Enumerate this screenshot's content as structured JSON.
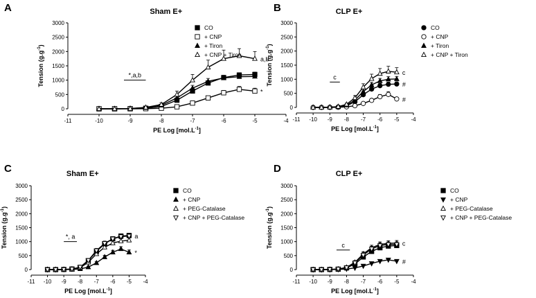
{
  "chart_data": [
    {
      "panel": "A",
      "type": "line",
      "title": "Sham E+",
      "xlabel": "PE Log [mol.L",
      "xlabel_sup": "-1",
      "xlabel_end": "]",
      "ylabel": "Tension (g.g",
      "ylabel_sup": "-1",
      "ylabel_end": ")",
      "xlim": [
        -11,
        -4
      ],
      "ylim": [
        0,
        3000
      ],
      "xticks": [
        "-11",
        "-10",
        "-9",
        "-8",
        "-7",
        "-6",
        "-5",
        "-4"
      ],
      "yticks": [
        "0",
        "500",
        "1000",
        "1500",
        "2000",
        "2500",
        "3000"
      ],
      "x": [
        -10,
        -9.5,
        -9,
        -8.5,
        -8,
        -7.5,
        -7,
        -6.5,
        -6,
        -5.5,
        -5
      ],
      "series": [
        {
          "name": "CO",
          "marker": "square-filled",
          "values": [
            0,
            0,
            5,
            20,
            80,
            300,
            620,
            900,
            1090,
            1180,
            1200
          ],
          "err": [
            0,
            0,
            10,
            20,
            40,
            60,
            80,
            80,
            80,
            80,
            80
          ],
          "end_label": ""
        },
        {
          "name": "+ CNP",
          "marker": "square-open",
          "values": [
            0,
            0,
            0,
            5,
            20,
            70,
            200,
            380,
            560,
            680,
            620
          ],
          "err": [
            0,
            0,
            5,
            10,
            20,
            30,
            60,
            70,
            80,
            100,
            100
          ],
          "end_label": "*"
        },
        {
          "name": "+ Tiron",
          "marker": "triangle-filled",
          "values": [
            0,
            0,
            10,
            40,
            120,
            380,
            720,
            960,
            1080,
            1120,
            1130
          ],
          "err": [
            0,
            0,
            10,
            20,
            40,
            80,
            100,
            100,
            80,
            80,
            80
          ],
          "end_label": ""
        },
        {
          "name": "+ CNP + Tiron",
          "marker": "triangle-open",
          "values": [
            0,
            0,
            10,
            50,
            150,
            500,
            1000,
            1450,
            1750,
            1850,
            1750
          ],
          "err": [
            0,
            0,
            10,
            30,
            60,
            120,
            200,
            250,
            300,
            250,
            250
          ],
          "end_label": "a,b"
        }
      ],
      "annotation": {
        "text": "*,a,b",
        "range": [
          -9.2,
          -8.5
        ],
        "y": 1000
      }
    },
    {
      "panel": "B",
      "type": "line",
      "title": "CLP E+",
      "xlabel": "PE Log [mol.L",
      "xlabel_sup": "-1",
      "xlabel_end": "]",
      "ylabel": "Tension (g.g",
      "ylabel_sup": "-1",
      "ylabel_end": ")",
      "xlim": [
        -11,
        -4
      ],
      "ylim": [
        0,
        3000
      ],
      "xticks": [
        "-11",
        "-10",
        "-9",
        "-8",
        "-7",
        "-6",
        "-5",
        "-4"
      ],
      "yticks": [
        "0",
        "500",
        "1000",
        "1500",
        "2000",
        "2500",
        "3000"
      ],
      "x": [
        -10,
        -9.5,
        -9,
        -8.5,
        -8,
        -7.5,
        -7,
        -6.5,
        -6,
        -5.5,
        -5
      ],
      "series": [
        {
          "name": "CO",
          "marker": "circle-filled",
          "values": [
            0,
            0,
            5,
            15,
            60,
            200,
            450,
            650,
            770,
            820,
            830
          ],
          "err": [
            0,
            0,
            5,
            10,
            30,
            50,
            80,
            80,
            80,
            80,
            80
          ],
          "end_label": "#"
        },
        {
          "name": "+ CNP",
          "marker": "circle-open",
          "values": [
            0,
            0,
            0,
            5,
            20,
            60,
            140,
            250,
            380,
            460,
            300
          ],
          "err": [
            0,
            0,
            5,
            5,
            10,
            20,
            40,
            60,
            80,
            100,
            60
          ],
          "end_label": "#"
        },
        {
          "name": "+ Tiron",
          "marker": "triangle-filled",
          "values": [
            0,
            0,
            5,
            20,
            80,
            260,
            560,
            800,
            940,
            1000,
            1010
          ],
          "err": [
            0,
            0,
            5,
            10,
            30,
            60,
            90,
            90,
            90,
            90,
            90
          ],
          "end_label": ""
        },
        {
          "name": "+ CNP + Tiron",
          "marker": "triangle-open",
          "values": [
            0,
            0,
            10,
            30,
            110,
            340,
            720,
            1020,
            1200,
            1280,
            1250
          ],
          "err": [
            0,
            0,
            10,
            20,
            40,
            80,
            120,
            160,
            180,
            180,
            160
          ],
          "end_label": "c"
        }
      ],
      "annotation": {
        "text": "c",
        "range": [
          -9,
          -8.4
        ],
        "y": 900
      }
    },
    {
      "panel": "C",
      "type": "line",
      "title": "Sham E+",
      "xlabel": "PE Log [mol.L",
      "xlabel_sup": "-1",
      "xlabel_end": "]",
      "ylabel": "Tension (g.g",
      "ylabel_sup": "-1",
      "ylabel_end": ")",
      "xlim": [
        -11,
        -4
      ],
      "ylim": [
        0,
        3000
      ],
      "xticks": [
        "-11",
        "-10",
        "-9",
        "-8",
        "-7",
        "-6",
        "-5",
        "-4"
      ],
      "yticks": [
        "0",
        "500",
        "1000",
        "1500",
        "2000",
        "2500",
        "3000"
      ],
      "x": [
        -10,
        -9.5,
        -9,
        -8.5,
        -8,
        -7.5,
        -7,
        -6.5,
        -6,
        -5.5,
        -5
      ],
      "series": [
        {
          "name": "CO",
          "marker": "square-filled",
          "values": [
            0,
            0,
            5,
            20,
            80,
            320,
            650,
            920,
            1100,
            1200,
            1220
          ],
          "err": [
            0,
            0,
            10,
            20,
            40,
            60,
            80,
            80,
            80,
            80,
            80
          ],
          "end_label": "a"
        },
        {
          "name": "+ CNP",
          "marker": "triangle-filled",
          "values": [
            0,
            0,
            0,
            5,
            25,
            90,
            240,
            450,
            620,
            740,
            620
          ],
          "err": [
            0,
            0,
            5,
            10,
            20,
            30,
            50,
            60,
            70,
            80,
            80
          ],
          "end_label": "*"
        },
        {
          "name": "+ PEG-Catalase",
          "marker": "triangle-open",
          "values": [
            0,
            0,
            5,
            15,
            70,
            260,
            560,
            800,
            950,
            1020,
            1050
          ],
          "err": [
            0,
            0,
            10,
            20,
            40,
            60,
            80,
            80,
            80,
            80,
            80
          ],
          "end_label": ""
        },
        {
          "name": "+ CNP + PEG-Catalase",
          "marker": "triangle-down-open",
          "values": [
            0,
            0,
            5,
            20,
            90,
            330,
            680,
            940,
            1100,
            1180,
            1200
          ],
          "err": [
            0,
            0,
            10,
            20,
            40,
            60,
            80,
            80,
            80,
            80,
            80
          ],
          "end_label": ""
        }
      ],
      "annotation": {
        "text": "*, a",
        "range": [
          -9,
          -8.2
        ],
        "y": 1000
      }
    },
    {
      "panel": "D",
      "type": "line",
      "title": "CLP E+",
      "xlabel": "PE Log [mol.L",
      "xlabel_sup": "-1",
      "xlabel_end": "]",
      "ylabel": "Tension (g.g",
      "ylabel_sup": "-1",
      "ylabel_end": ")",
      "xlim": [
        -11,
        -4
      ],
      "ylim": [
        0,
        3000
      ],
      "xticks": [
        "-11",
        "-10",
        "-9",
        "-8",
        "-7",
        "-6",
        "-5",
        "-4"
      ],
      "yticks": [
        "0",
        "500",
        "1000",
        "1500",
        "2000",
        "2500",
        "3000"
      ],
      "x": [
        -10,
        -9.5,
        -9,
        -8.5,
        -8,
        -7.5,
        -7,
        -6.5,
        -6,
        -5.5,
        -5
      ],
      "series": [
        {
          "name": "CO",
          "marker": "square-filled",
          "values": [
            0,
            0,
            5,
            15,
            60,
            200,
            450,
            650,
            780,
            840,
            860
          ],
          "err": [
            0,
            0,
            5,
            10,
            30,
            50,
            70,
            80,
            80,
            80,
            80
          ],
          "end_label": ""
        },
        {
          "name": "+ CNP",
          "marker": "triangle-down-filled",
          "values": [
            0,
            0,
            0,
            5,
            20,
            60,
            130,
            220,
            300,
            350,
            300
          ],
          "err": [
            0,
            0,
            5,
            5,
            10,
            20,
            30,
            40,
            50,
            60,
            50
          ],
          "end_label": "#"
        },
        {
          "name": "+ PEG-Catalase",
          "marker": "triangle-open",
          "values": [
            0,
            0,
            5,
            20,
            80,
            260,
            560,
            780,
            900,
            940,
            950
          ],
          "err": [
            0,
            0,
            5,
            10,
            30,
            60,
            80,
            90,
            90,
            90,
            90
          ],
          "end_label": "c"
        },
        {
          "name": "+ CNP + PEG-Catalase",
          "marker": "triangle-down-open",
          "values": [
            0,
            0,
            5,
            20,
            70,
            240,
            520,
            740,
            860,
            900,
            900
          ],
          "err": [
            0,
            0,
            5,
            10,
            30,
            60,
            80,
            90,
            90,
            90,
            90
          ],
          "end_label": ""
        }
      ],
      "annotation": {
        "text": "c",
        "range": [
          -8.6,
          -7.8
        ],
        "y": 700
      }
    }
  ]
}
